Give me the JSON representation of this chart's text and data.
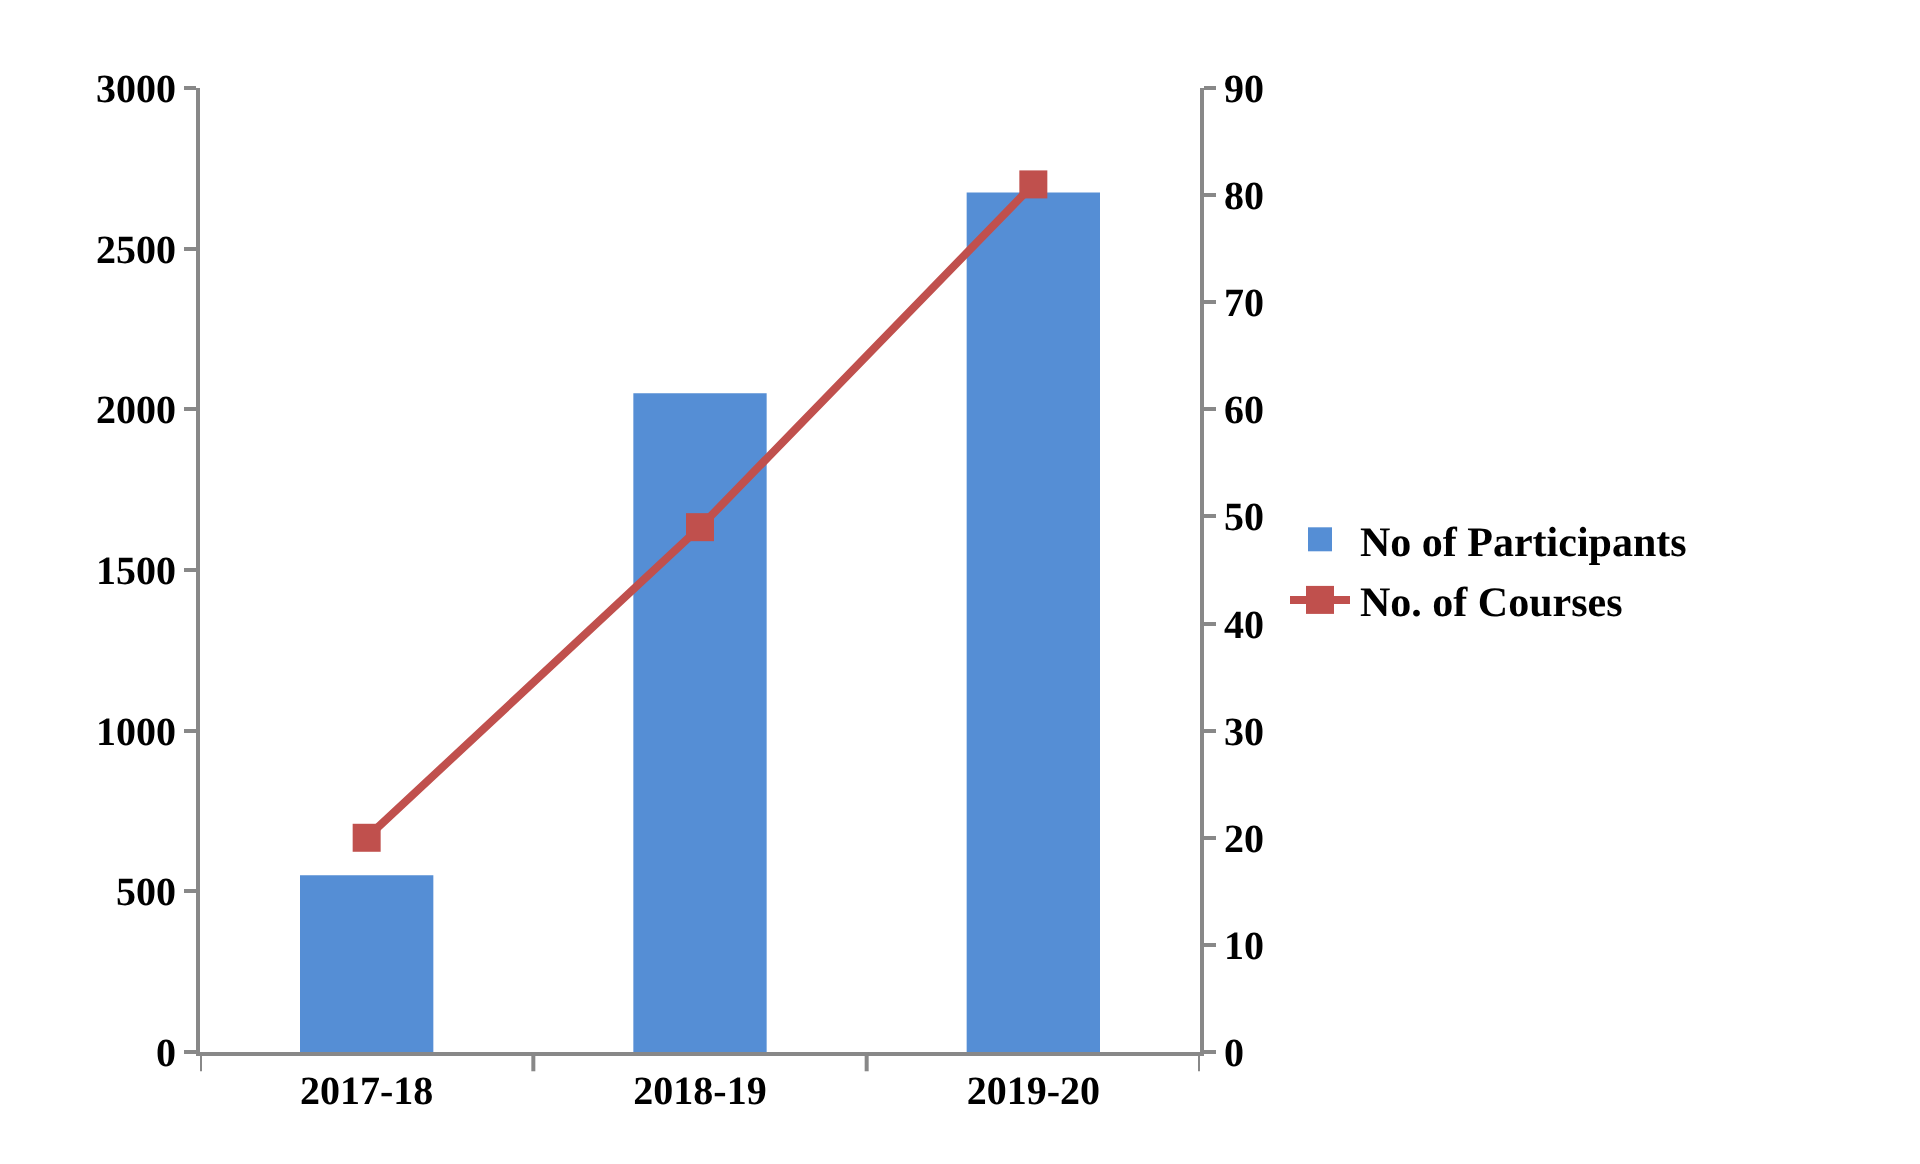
{
  "chart_data": {
    "type": "bar",
    "categories": [
      "2017-18",
      "2018-19",
      "2019-20"
    ],
    "series": [
      {
        "name": "No of Participants",
        "color": "#558ed5",
        "values": [
          550,
          2050,
          2675
        ]
      },
      {
        "name": "No. of Courses",
        "type": "line",
        "axis": "y2",
        "color": "#c0504d",
        "values": [
          20,
          49,
          81
        ],
        "marker": "square"
      }
    ],
    "ylim": [
      0,
      3000
    ],
    "yticks": [
      0,
      500,
      1000,
      1500,
      2000,
      2500,
      3000
    ],
    "y2lim": [
      0,
      90
    ],
    "y2ticks": [
      0,
      10,
      20,
      30,
      40,
      50,
      60,
      70,
      80,
      90
    ],
    "grid": false,
    "legend": "right"
  }
}
